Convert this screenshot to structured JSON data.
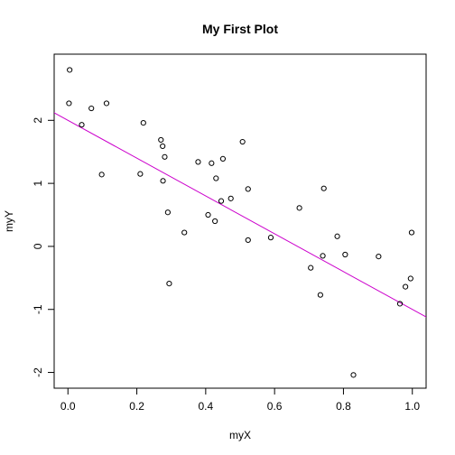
{
  "chart_data": {
    "type": "scatter",
    "title": "My First Plot",
    "xlabel": "myX",
    "ylabel": "myY",
    "xlim": [
      -0.04,
      1.04
    ],
    "ylim": [
      -2.25,
      3.05
    ],
    "x_ticks": [
      0.0,
      0.2,
      0.4,
      0.6,
      0.8,
      1.0
    ],
    "x_tick_labels": [
      "0.0",
      "0.2",
      "0.4",
      "0.6",
      "0.8",
      "1.0"
    ],
    "y_ticks": [
      -2,
      -1,
      0,
      1,
      2
    ],
    "y_tick_labels": [
      "-2",
      "-1",
      "0",
      "1",
      "2"
    ],
    "grid": false,
    "marker": "open-circle",
    "point_color": "#000000",
    "points": [
      {
        "x": 0.005,
        "y": 2.8
      },
      {
        "x": 0.003,
        "y": 2.27
      },
      {
        "x": 0.04,
        "y": 1.93
      },
      {
        "x": 0.068,
        "y": 2.19
      },
      {
        "x": 0.098,
        "y": 1.14
      },
      {
        "x": 0.112,
        "y": 2.27
      },
      {
        "x": 0.21,
        "y": 1.15
      },
      {
        "x": 0.219,
        "y": 1.96
      },
      {
        "x": 0.27,
        "y": 1.69
      },
      {
        "x": 0.275,
        "y": 1.59
      },
      {
        "x": 0.276,
        "y": 1.04
      },
      {
        "x": 0.281,
        "y": 1.42
      },
      {
        "x": 0.29,
        "y": 0.54
      },
      {
        "x": 0.294,
        "y": -0.59
      },
      {
        "x": 0.338,
        "y": 0.22
      },
      {
        "x": 0.378,
        "y": 1.34
      },
      {
        "x": 0.407,
        "y": 0.5
      },
      {
        "x": 0.417,
        "y": 1.32
      },
      {
        "x": 0.427,
        "y": 0.4
      },
      {
        "x": 0.43,
        "y": 1.08
      },
      {
        "x": 0.445,
        "y": 0.72
      },
      {
        "x": 0.45,
        "y": 1.39
      },
      {
        "x": 0.473,
        "y": 0.76
      },
      {
        "x": 0.507,
        "y": 1.66
      },
      {
        "x": 0.523,
        "y": 0.91
      },
      {
        "x": 0.523,
        "y": 0.1
      },
      {
        "x": 0.589,
        "y": 0.14
      },
      {
        "x": 0.672,
        "y": 0.61
      },
      {
        "x": 0.705,
        "y": -0.34
      },
      {
        "x": 0.733,
        "y": -0.77
      },
      {
        "x": 0.74,
        "y": -0.15
      },
      {
        "x": 0.743,
        "y": 0.92
      },
      {
        "x": 0.782,
        "y": 0.16
      },
      {
        "x": 0.805,
        "y": -0.13
      },
      {
        "x": 0.829,
        "y": -2.04
      },
      {
        "x": 0.902,
        "y": -0.16
      },
      {
        "x": 0.964,
        "y": -0.91
      },
      {
        "x": 0.98,
        "y": -0.64
      },
      {
        "x": 0.995,
        "y": -0.51
      },
      {
        "x": 0.998,
        "y": 0.22
      }
    ],
    "fit_line": {
      "color": "#cc00cc",
      "intercept": 2.0,
      "slope": -3.0
    }
  }
}
